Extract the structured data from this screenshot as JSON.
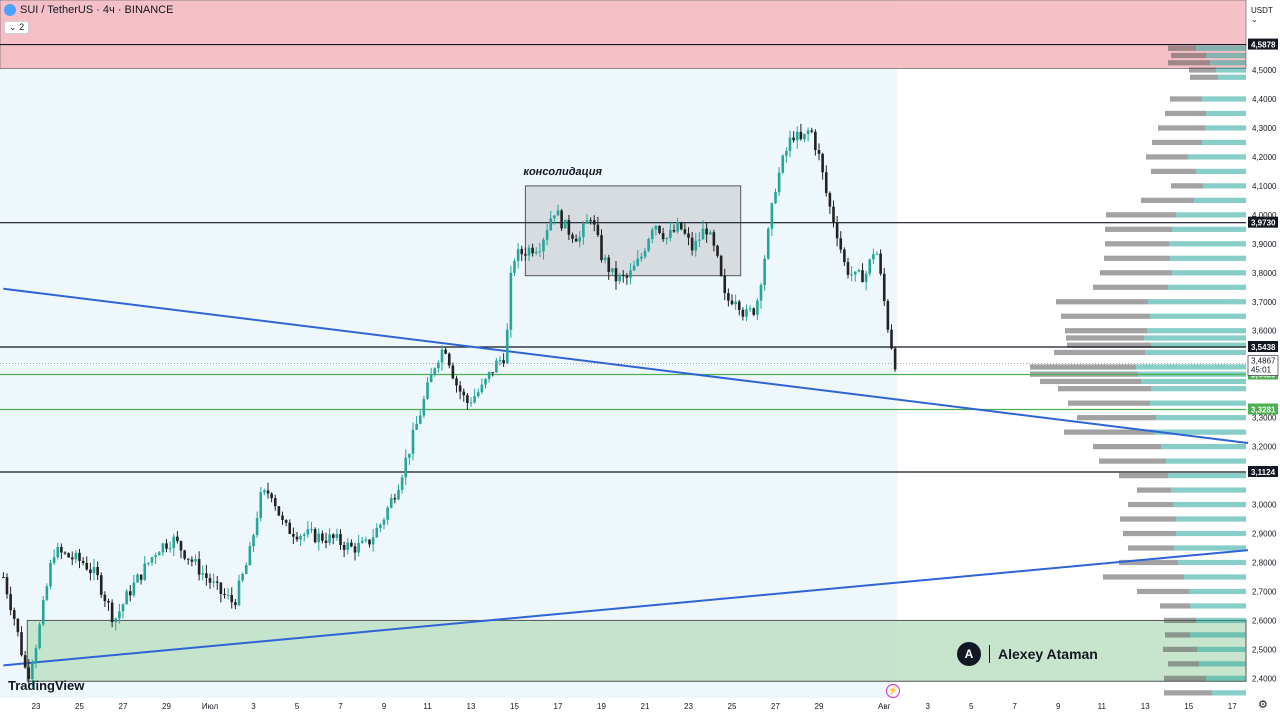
{
  "header": {
    "title": "SUI / TetherUS · 4ч · BINANCE",
    "indicator_count": "2",
    "currency": "USDT",
    "currency_caret": "⌄"
  },
  "branding": {
    "logo": "TradingView",
    "author": "Alexey Ataman",
    "author_mark": "A"
  },
  "colors": {
    "up": "#26a69a",
    "down": "#222222",
    "resistance_zone": "#f5b5bd",
    "support_zone": "#b9dfc0",
    "history_bg": "#eef7fc",
    "trendline": "#2f63d6",
    "green_level": "#4caf50",
    "black_level": "#131722"
  },
  "chart_data": {
    "type": "candlestick",
    "symbol": "SUI / TetherUS",
    "timeframe": "4ч",
    "exchange": "BINANCE",
    "y_axis": {
      "range": [
        2.36,
        4.6
      ],
      "ticks": [
        "4,5000",
        "4,4000",
        "4,3000",
        "4,2000",
        "4,1000",
        "4,0000",
        "3,9000",
        "3,8000",
        "3,7000",
        "3,6000",
        "3,3000",
        "3,2000",
        "3,0000",
        "2,9000",
        "2,8000",
        "2,7000",
        "2,6000",
        "2,5000",
        "2,4000"
      ],
      "tick_values": [
        4.5,
        4.4,
        4.3,
        4.2,
        4.1,
        4.0,
        3.9,
        3.8,
        3.7,
        3.6,
        3.3,
        3.2,
        3.0,
        2.9,
        2.8,
        2.7,
        2.6,
        2.5,
        2.4
      ]
    },
    "x_axis": {
      "ticks": [
        "23",
        "25",
        "27",
        "29",
        "Июл",
        "3",
        "5",
        "7",
        "9",
        "11",
        "13",
        "15",
        "17",
        "19",
        "21",
        "23",
        "25",
        "27",
        "29",
        "Авг",
        "3",
        "5",
        "7",
        "9",
        "11",
        "13",
        "15",
        "17"
      ],
      "tick_days": [
        -8,
        -6,
        -4,
        -2,
        0,
        2,
        4,
        6,
        8,
        10,
        12,
        14,
        16,
        18,
        20,
        22,
        24,
        26,
        28,
        31,
        33,
        35,
        37,
        39,
        41,
        43,
        45,
        47
      ]
    },
    "levels": [
      {
        "label": "4,5878",
        "value": 4.5878,
        "kind": "black"
      },
      {
        "label": "3,9730",
        "value": 3.973,
        "kind": "black"
      },
      {
        "label": "3,5438",
        "value": 3.5438,
        "kind": "black"
      },
      {
        "label": "3,4489",
        "value": 3.4489,
        "kind": "green"
      },
      {
        "label": "3,3281",
        "value": 3.3281,
        "kind": "green"
      },
      {
        "label": "3,1124",
        "value": 3.1124,
        "kind": "black"
      }
    ],
    "current_price": {
      "label": "3,4867",
      "value": 3.4867,
      "countdown": "45:01"
    },
    "zones": [
      {
        "name": "resistance",
        "from": 4.505,
        "to": 4.75
      },
      {
        "name": "support",
        "from": 2.39,
        "to": 2.6
      }
    ],
    "consolidation": {
      "label": "консолидация",
      "day_from": 14.5,
      "day_to": 24.4,
      "from": 3.79,
      "to": 4.1
    },
    "trendlines": [
      {
        "from": {
          "day": -9.5,
          "price": 3.745
        },
        "to": {
          "day": 48.5,
          "price": 3.205
        }
      },
      {
        "from": {
          "day": -9.5,
          "price": 2.445
        },
        "to": {
          "day": 48.5,
          "price": 2.848
        }
      }
    ],
    "candle_start_day": -9.5,
    "candles_per_day": 6,
    "close_anchors": [
      [
        -9.5,
        2.75
      ],
      [
        -9.0,
        2.61
      ],
      [
        -8.4,
        2.4
      ],
      [
        -7.9,
        2.55
      ],
      [
        -7.2,
        2.84
      ],
      [
        -6.5,
        2.82
      ],
      [
        -5.8,
        2.8
      ],
      [
        -5.2,
        2.75
      ],
      [
        -4.4,
        2.6
      ],
      [
        -3.7,
        2.7
      ],
      [
        -3.0,
        2.78
      ],
      [
        -2.4,
        2.85
      ],
      [
        -1.7,
        2.88
      ],
      [
        -1.0,
        2.82
      ],
      [
        -0.3,
        2.76
      ],
      [
        0.4,
        2.7
      ],
      [
        1.1,
        2.66
      ],
      [
        1.8,
        2.82
      ],
      [
        2.3,
        3.02
      ],
      [
        2.8,
        3.05
      ],
      [
        3.4,
        2.92
      ],
      [
        4.1,
        2.9
      ],
      [
        4.9,
        2.89
      ],
      [
        5.7,
        2.88
      ],
      [
        6.5,
        2.85
      ],
      [
        7.2,
        2.86
      ],
      [
        7.9,
        2.94
      ],
      [
        8.6,
        3.06
      ],
      [
        9.2,
        3.2
      ],
      [
        9.8,
        3.35
      ],
      [
        10.4,
        3.5
      ],
      [
        10.8,
        3.55
      ],
      [
        11.3,
        3.42
      ],
      [
        11.8,
        3.35
      ],
      [
        12.5,
        3.4
      ],
      [
        13.1,
        3.48
      ],
      [
        13.6,
        3.52
      ],
      [
        13.9,
        3.85
      ],
      [
        14.6,
        3.88
      ],
      [
        15.2,
        3.9
      ],
      [
        15.8,
        4.02
      ],
      [
        16.4,
        3.95
      ],
      [
        17.0,
        3.92
      ],
      [
        17.5,
        4.0
      ],
      [
        18.0,
        3.86
      ],
      [
        18.6,
        3.78
      ],
      [
        19.2,
        3.78
      ],
      [
        19.8,
        3.85
      ],
      [
        20.4,
        3.98
      ],
      [
        21.0,
        3.92
      ],
      [
        21.6,
        3.96
      ],
      [
        22.2,
        3.88
      ],
      [
        22.8,
        3.96
      ],
      [
        23.3,
        3.85
      ],
      [
        23.7,
        3.7
      ],
      [
        24.2,
        3.72
      ],
      [
        24.6,
        3.65
      ],
      [
        25.1,
        3.68
      ],
      [
        25.6,
        3.9
      ],
      [
        26.0,
        4.1
      ],
      [
        26.4,
        4.2
      ],
      [
        26.8,
        4.28
      ],
      [
        27.2,
        4.25
      ],
      [
        27.6,
        4.3
      ],
      [
        28.0,
        4.2
      ],
      [
        28.4,
        4.05
      ],
      [
        28.8,
        3.95
      ],
      [
        29.2,
        3.82
      ],
      [
        29.7,
        3.78
      ],
      [
        30.2,
        3.8
      ],
      [
        30.6,
        3.9
      ],
      [
        30.9,
        3.75
      ],
      [
        31.2,
        3.6
      ],
      [
        31.5,
        3.49
      ]
    ],
    "volume_profile": {
      "row_height": 0.025,
      "bins": [
        [
          4.575,
          28,
          50
        ],
        [
          4.55,
          35,
          40
        ],
        [
          4.525,
          42,
          36
        ],
        [
          4.5,
          27,
          30
        ],
        [
          4.475,
          28,
          28
        ],
        [
          4.4,
          32,
          44
        ],
        [
          4.35,
          41,
          40
        ],
        [
          4.3,
          47,
          41
        ],
        [
          4.25,
          50,
          44
        ],
        [
          4.2,
          42,
          58
        ],
        [
          4.15,
          45,
          50
        ],
        [
          4.1,
          32,
          43
        ],
        [
          4.05,
          53,
          52
        ],
        [
          4.0,
          70,
          70
        ],
        [
          3.95,
          67,
          74
        ],
        [
          3.9,
          64,
          77
        ],
        [
          3.85,
          66,
          76
        ],
        [
          3.8,
          72,
          74
        ],
        [
          3.75,
          75,
          78
        ],
        [
          3.7,
          92,
          98
        ],
        [
          3.65,
          89,
          96
        ],
        [
          3.6,
          82,
          99
        ],
        [
          3.575,
          78,
          102
        ],
        [
          3.55,
          84,
          95
        ],
        [
          3.525,
          91,
          101
        ],
        [
          3.475,
          106,
          110
        ],
        [
          3.45,
          108,
          108
        ],
        [
          3.425,
          101,
          105
        ],
        [
          3.4,
          93,
          95
        ],
        [
          3.35,
          82,
          96
        ],
        [
          3.3,
          79,
          90
        ],
        [
          3.25,
          90,
          92
        ],
        [
          3.2,
          68,
          85
        ],
        [
          3.15,
          67,
          80
        ],
        [
          3.1,
          49,
          78
        ],
        [
          3.05,
          34,
          75
        ],
        [
          3.0,
          45,
          73
        ],
        [
          2.95,
          56,
          70
        ],
        [
          2.9,
          53,
          70
        ],
        [
          2.85,
          46,
          72
        ],
        [
          2.8,
          59,
          68
        ],
        [
          2.75,
          81,
          62
        ],
        [
          2.7,
          52,
          57
        ],
        [
          2.65,
          30,
          56
        ],
        [
          2.6,
          32,
          50
        ],
        [
          2.55,
          25,
          56
        ],
        [
          2.5,
          34,
          49
        ],
        [
          2.45,
          31,
          47
        ],
        [
          2.4,
          42,
          40
        ],
        [
          2.35,
          48,
          34
        ]
      ]
    }
  }
}
